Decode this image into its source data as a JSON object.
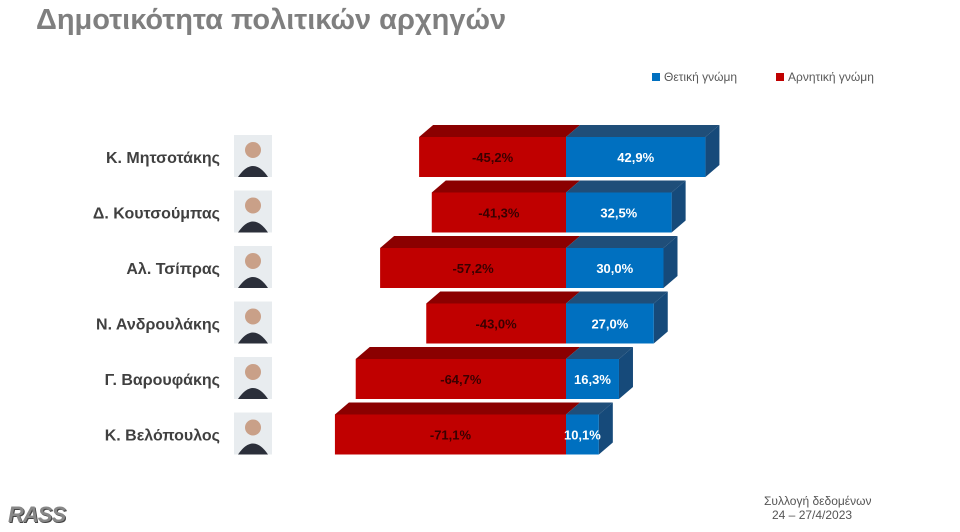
{
  "title": "Δημοτικότητα πολιτικών αρχηγών",
  "colors": {
    "positive": "#0070c0",
    "negative": "#c00000"
  },
  "footer": {
    "logo": "RASS",
    "source_line1": "Συλλογή δεδομένων",
    "source_line2": "24 – 27/4/2023"
  },
  "chart_data": {
    "type": "bar",
    "orientation": "horizontal-diverging",
    "style": "3d",
    "legend_position": "top-right",
    "categories": [
      "Κ. Μητσοτάκης",
      "Δ. Κουτσούμπας",
      "Αλ. Τσίπρας",
      "Ν. Ανδρουλάκης",
      "Γ. Βαρουφάκης",
      "Κ. Βελόπουλος"
    ],
    "series": [
      {
        "name": "Θετική γνώμη",
        "values": [
          42.9,
          32.5,
          30.0,
          27.0,
          16.3,
          10.1
        ],
        "labels": [
          "42,9%",
          "32,5%",
          "30,0%",
          "27,0%",
          "16,3%",
          "10,1%"
        ]
      },
      {
        "name": "Αρνητική γνώμη",
        "values": [
          -45.2,
          -41.3,
          -57.2,
          -43.0,
          -64.7,
          -71.1
        ],
        "labels": [
          "-45,2%",
          "-41,3%",
          "-57,2%",
          "-43,0%",
          "-64,7%",
          "-71,1%"
        ]
      }
    ]
  }
}
